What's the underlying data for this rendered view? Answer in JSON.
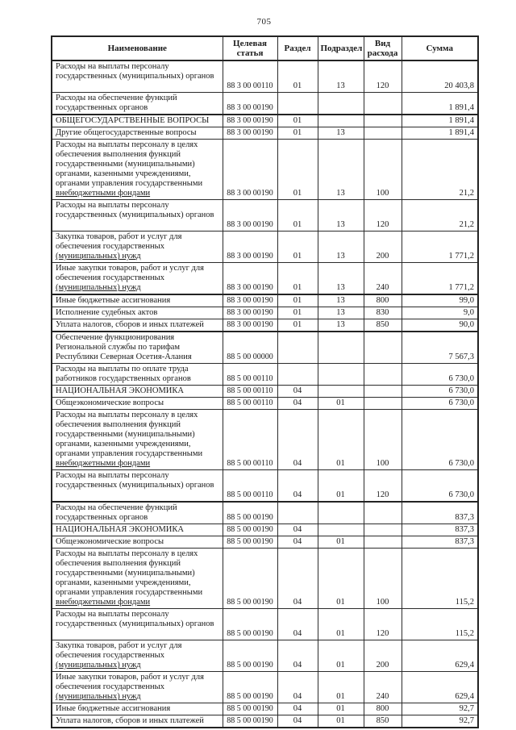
{
  "page": {
    "number": "705"
  },
  "table": {
    "columns": [
      {
        "key": "name",
        "label": "Наименование"
      },
      {
        "key": "code",
        "label": "Целевая статья"
      },
      {
        "key": "razdel",
        "label": "Раздел"
      },
      {
        "key": "podrazdel",
        "label": "Подраздел"
      },
      {
        "key": "vid",
        "label": "Вид расхода"
      },
      {
        "key": "summa",
        "label": "Сумма"
      }
    ],
    "rows": [
      {
        "name": [
          "Расходы на выплаты персоналу",
          "государственных (муниципальных) органов"
        ],
        "code": "88 3 00 00110",
        "razdel": "01",
        "podrazdel": "13",
        "vid": "120",
        "summa": "20 403,8",
        "thick_top": false,
        "extra_space": true,
        "underline_last": false
      },
      {
        "name": [
          "Расходы на обеспечение функций",
          "государственных органов"
        ],
        "code": "88 3 00 00190",
        "razdel": "",
        "podrazdel": "",
        "vid": "",
        "summa": "1 891,4",
        "thick_top": false,
        "extra_space": false,
        "underline_last": false
      },
      {
        "name": [
          "ОБЩЕГОСУДАРСТВЕННЫЕ ВОПРОСЫ"
        ],
        "code": "88 3 00 00190",
        "razdel": "01",
        "podrazdel": "",
        "vid": "",
        "summa": "1 891,4",
        "thick_top": true,
        "extra_space": false,
        "underline_last": false
      },
      {
        "name": [
          "Другие общегосударственные вопросы"
        ],
        "code": "88 3 00 00190",
        "razdel": "01",
        "podrazdel": "13",
        "vid": "",
        "summa": "1 891,4",
        "thick_top": false,
        "extra_space": false,
        "underline_last": false
      },
      {
        "name": [
          "Расходы на выплаты персоналу в целях",
          "обеспечения выполнения функций",
          "государственными (муниципальными)",
          "органами, казенными учреждениями,",
          "органами управления государственными",
          "внебюджетными фондами"
        ],
        "code": "88 3 00 00190",
        "razdel": "01",
        "podrazdel": "13",
        "vid": "100",
        "summa": "21,2",
        "thick_top": false,
        "extra_space": false,
        "underline_last": true
      },
      {
        "name": [
          "Расходы на выплаты персоналу",
          "государственных (муниципальных) органов"
        ],
        "code": "88 3 00 00190",
        "razdel": "01",
        "podrazdel": "13",
        "vid": "120",
        "summa": "21,2",
        "thick_top": false,
        "extra_space": true,
        "underline_last": false
      },
      {
        "name": [
          "Закупка товаров, работ и услуг для",
          "обеспечения государственных",
          "(муниципальных) нужд"
        ],
        "code": "88 3 00 00190",
        "razdel": "01",
        "podrazdel": "13",
        "vid": "200",
        "summa": "1 771,2",
        "thick_top": false,
        "extra_space": false,
        "underline_last": true
      },
      {
        "name": [
          "Иные закупки товаров, работ и услуг для",
          "обеспечения государственных",
          "(муниципальных) нужд"
        ],
        "code": "88 3 00 00190",
        "razdel": "01",
        "podrazdel": "13",
        "vid": "240",
        "summa": "1 771,2",
        "thick_top": false,
        "extra_space": false,
        "underline_last": true
      },
      {
        "name": [
          "Иные бюджетные ассигнования"
        ],
        "code": "88 3 00 00190",
        "razdel": "01",
        "podrazdel": "13",
        "vid": "800",
        "summa": "99,0",
        "thick_top": true,
        "extra_space": false,
        "underline_last": false
      },
      {
        "name": [
          "Исполнение судебных актов"
        ],
        "code": "88 3 00 00190",
        "razdel": "01",
        "podrazdel": "13",
        "vid": "830",
        "summa": "9,0",
        "thick_top": false,
        "extra_space": false,
        "underline_last": false
      },
      {
        "name": [
          "Уплата налогов, сборов и иных платежей"
        ],
        "code": "88 3 00 00190",
        "razdel": "01",
        "podrazdel": "13",
        "vid": "850",
        "summa": "90,0",
        "thick_top": false,
        "extra_space": false,
        "underline_last": false
      },
      {
        "name": [
          "Обеспечение функционирования",
          "Региональной службы по тарифам",
          "Республики Северная Осетия-Алания"
        ],
        "code": "88 5 00 00000",
        "razdel": "",
        "podrazdel": "",
        "vid": "",
        "summa": "7 567,3",
        "thick_top": true,
        "extra_space": false,
        "underline_last": false
      },
      {
        "name": [
          "Расходы на выплаты по оплате труда",
          "работников государственных органов"
        ],
        "code": "88 5 00 00110",
        "razdel": "",
        "podrazdel": "",
        "vid": "",
        "summa": "6 730,0",
        "thick_top": false,
        "extra_space": false,
        "underline_last": false
      },
      {
        "name": [
          "НАЦИОНАЛЬНАЯ ЭКОНОМИКА"
        ],
        "code": "88 5 00 00110",
        "razdel": "04",
        "podrazdel": "",
        "vid": "",
        "summa": "6 730,0",
        "thick_top": false,
        "extra_space": false,
        "underline_last": false
      },
      {
        "name": [
          "Общеэкономические вопросы"
        ],
        "code": "88 5 00 00110",
        "razdel": "04",
        "podrazdel": "01",
        "vid": "",
        "summa": "6 730,0",
        "thick_top": false,
        "extra_space": false,
        "underline_last": false
      },
      {
        "name": [
          "Расходы на выплаты персоналу в целях",
          "обеспечения выполнения функций",
          "государственными (муниципальными)",
          "органами, казенными учреждениями,",
          "органами управления государственными",
          "внебюджетными фондами"
        ],
        "code": "88 5 00 00110",
        "razdel": "04",
        "podrazdel": "01",
        "vid": "100",
        "summa": "6 730,0",
        "thick_top": false,
        "extra_space": false,
        "underline_last": true
      },
      {
        "name": [
          "Расходы на выплаты персоналу",
          "государственных (муниципальных) органов"
        ],
        "code": "88 5 00 00110",
        "razdel": "04",
        "podrazdel": "01",
        "vid": "120",
        "summa": "6 730,0",
        "thick_top": false,
        "extra_space": true,
        "underline_last": false
      },
      {
        "name": [
          "Расходы на обеспечение функций",
          "государственных органов"
        ],
        "code": "88 5 00 00190",
        "razdel": "",
        "podrazdel": "",
        "vid": "",
        "summa": "837,3",
        "thick_top": true,
        "extra_space": false,
        "underline_last": false
      },
      {
        "name": [
          "НАЦИОНАЛЬНАЯ ЭКОНОМИКА"
        ],
        "code": "88 5 00 00190",
        "razdel": "04",
        "podrazdel": "",
        "vid": "",
        "summa": "837,3",
        "thick_top": false,
        "extra_space": false,
        "underline_last": false
      },
      {
        "name": [
          "Общеэкономические вопросы"
        ],
        "code": "88 5 00 00190",
        "razdel": "04",
        "podrazdel": "01",
        "vid": "",
        "summa": "837,3",
        "thick_top": false,
        "extra_space": false,
        "underline_last": false
      },
      {
        "name": [
          "Расходы на выплаты персоналу в целях",
          "обеспечения выполнения функций",
          "государственными (муниципальными)",
          "органами, казенными учреждениями,",
          "органами управления государственными",
          "внебюджетными фондами"
        ],
        "code": "88 5 00 00190",
        "razdel": "04",
        "podrazdel": "01",
        "vid": "100",
        "summa": "115,2",
        "thick_top": false,
        "extra_space": false,
        "underline_last": true
      },
      {
        "name": [
          "Расходы на выплаты персоналу",
          "государственных (муниципальных) органов"
        ],
        "code": "88 5 00 00190",
        "razdel": "04",
        "podrazdel": "01",
        "vid": "120",
        "summa": "115,2",
        "thick_top": false,
        "extra_space": true,
        "underline_last": false
      },
      {
        "name": [
          "Закупка товаров, работ и услуг для",
          "обеспечения государственных",
          "(муниципальных) нужд"
        ],
        "code": "88 5 00 00190",
        "razdel": "04",
        "podrazdel": "01",
        "vid": "200",
        "summa": "629,4",
        "thick_top": false,
        "extra_space": false,
        "underline_last": true
      },
      {
        "name": [
          "Иные закупки товаров, работ и услуг для",
          "обеспечения государственных",
          "(муниципальных) нужд"
        ],
        "code": "88 5 00 00190",
        "razdel": "04",
        "podrazdel": "01",
        "vid": "240",
        "summa": "629,4",
        "thick_top": false,
        "extra_space": false,
        "underline_last": true
      },
      {
        "name": [
          "Иные бюджетные ассигнования"
        ],
        "code": "88 5 00 00190",
        "razdel": "04",
        "podrazdel": "01",
        "vid": "800",
        "summa": "92,7",
        "thick_top": false,
        "extra_space": false,
        "underline_last": false
      },
      {
        "name": [
          "Уплата налогов, сборов и иных платежей"
        ],
        "code": "88 5 00 00190",
        "razdel": "04",
        "podrazdel": "01",
        "vid": "850",
        "summa": "92,7",
        "thick_top": false,
        "extra_space": false,
        "underline_last": false
      }
    ]
  }
}
